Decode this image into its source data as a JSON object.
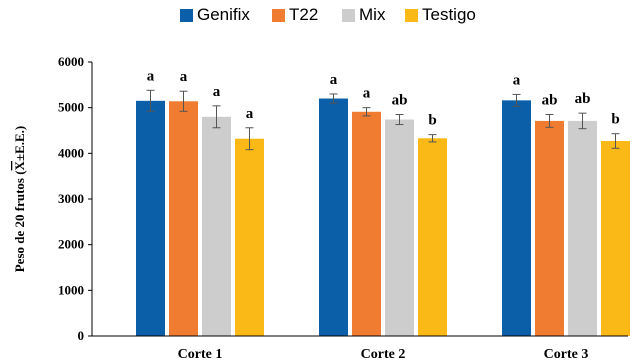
{
  "chart_data": {
    "type": "bar",
    "title": "",
    "xlabel": "",
    "ylabel": "Peso de 20 frutos (X±E.E.)",
    "ylabel_parts": {
      "prefix": "Peso de 20 frutos (",
      "mean_symbol": "X",
      "suffix": "±E.E.)"
    },
    "ylim": [
      0,
      6000
    ],
    "yticks": [
      0,
      1000,
      2000,
      3000,
      4000,
      5000,
      6000
    ],
    "ytick_labels": [
      "0",
      "1000",
      "2000",
      "3000",
      "4000",
      "5000",
      "6000"
    ],
    "grid": false,
    "legend_position": "top",
    "categories": [
      "Corte 1",
      "Corte 2",
      "Corte 3"
    ],
    "series": [
      {
        "name": "Genifix",
        "color": "#0a5fa8",
        "values": [
          5150,
          5200,
          5160
        ],
        "errors": [
          230,
          100,
          130
        ],
        "letters": [
          "a",
          "a",
          "a"
        ]
      },
      {
        "name": "T22",
        "color": "#ef7c30",
        "values": [
          5140,
          4910,
          4710
        ],
        "errors": [
          220,
          90,
          140
        ],
        "letters": [
          "a",
          "a",
          "ab"
        ]
      },
      {
        "name": "Mix",
        "color": "#cdcdcd",
        "values": [
          4800,
          4740,
          4710
        ],
        "errors": [
          240,
          110,
          170
        ],
        "letters": [
          "a",
          "ab",
          "ab"
        ]
      },
      {
        "name": "Testigo",
        "color": "#fbb918",
        "values": [
          4320,
          4330,
          4270
        ],
        "errors": [
          240,
          80,
          160
        ],
        "letters": [
          "a",
          "b",
          "b"
        ]
      }
    ]
  }
}
